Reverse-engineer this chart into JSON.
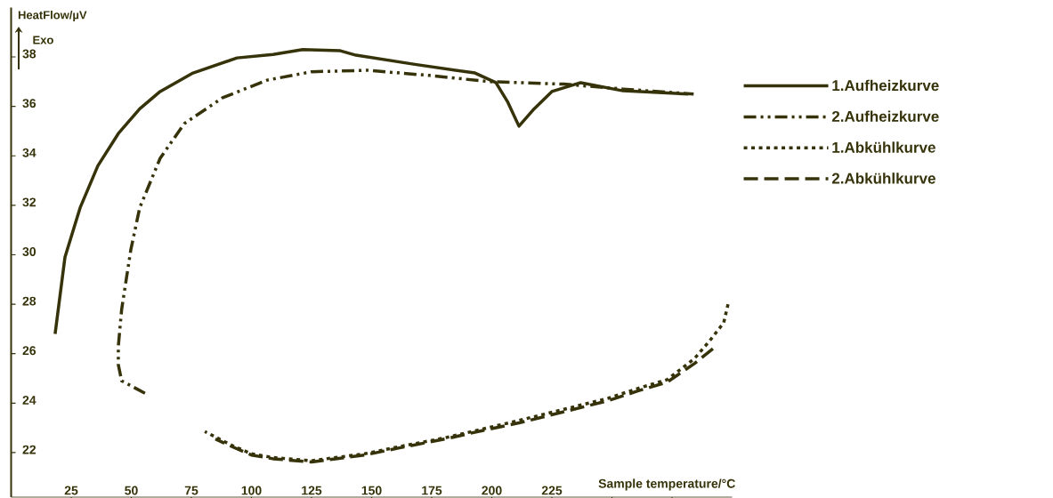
{
  "chart_data": {
    "type": "line",
    "xlabel": "Sample temperature/°C",
    "ylabel": "HeatFlow/µV",
    "annotations": [
      "Exo"
    ],
    "xlim": [
      0,
      300
    ],
    "ylim": [
      20.2,
      40
    ],
    "xticks": [
      25,
      50,
      75,
      100,
      125,
      150,
      175,
      200,
      225,
      {
        "value": 250,
        "label": null
      },
      {
        "value": 275,
        "label": null
      }
    ],
    "yticks": [
      22,
      24,
      26,
      28,
      30,
      32,
      34,
      36,
      38
    ],
    "grid": false,
    "legend": "right",
    "marker": "none",
    "series": [
      {
        "name": "1.Aufheizkurve",
        "color": "#36330a",
        "line_style": "solid",
        "x": [
          18.3,
          22.4,
          28.7,
          36.1,
          44.6,
          53.5,
          62,
          75.7,
          94,
          109,
          121.3,
          137,
          143.5,
          168,
          193,
          201.7,
          206.5,
          211.3,
          217.6,
          225,
          237,
          254.6,
          281.7
        ],
        "values": [
          26.8,
          29.9,
          31.9,
          33.6,
          34.9,
          35.9,
          36.6,
          37.35,
          37.96,
          38.1,
          38.3,
          38.25,
          38.07,
          37.7,
          37.35,
          36.96,
          36.2,
          35.2,
          35.9,
          36.6,
          36.96,
          36.63,
          36.5
        ]
      },
      {
        "name": "2.Aufheizkurve",
        "color": "#36330a",
        "line_style": "dashdotdotted",
        "x": [
          55.7,
          46,
          44.6,
          44.6,
          46,
          49.8,
          53.5,
          62,
          72,
          88,
          106.5,
          125,
          148.3,
          174,
          199,
          230,
          254.6,
          284
        ],
        "values": [
          24.4,
          24.9,
          25.55,
          26.3,
          27.8,
          30.2,
          31.9,
          33.9,
          35.3,
          36.35,
          37.06,
          37.4,
          37.46,
          37.25,
          37.0,
          36.9,
          36.7,
          36.5
        ]
      },
      {
        "name": "1.Abkühlkurve",
        "color": "#36330a",
        "line_style": "dotted",
        "x": [
          298.3,
          296.5,
          290.5,
          284.3,
          273,
          261,
          248.5,
          230,
          211.3,
          196.5,
          180.6,
          162,
          147,
          135,
          125,
          109,
          100,
          91.7,
          80.6
        ],
        "values": [
          28.0,
          27.25,
          26.5,
          25.8,
          24.95,
          24.6,
          24.2,
          23.75,
          23.3,
          22.96,
          22.6,
          22.25,
          21.95,
          21.8,
          21.67,
          21.8,
          21.95,
          22.3,
          22.85
        ]
      },
      {
        "name": "2.Abkühlkurve",
        "color": "#36330a",
        "line_style": "dashed",
        "x": [
          292,
          284.3,
          273,
          261,
          248.5,
          230,
          211.3,
          196.5,
          180.6,
          162,
          147,
          135,
          125,
          109,
          100,
          91.7,
          85
        ],
        "values": [
          26.2,
          25.6,
          24.85,
          24.5,
          24.1,
          23.65,
          23.2,
          22.9,
          22.55,
          22.2,
          21.9,
          21.75,
          21.62,
          21.75,
          21.9,
          22.25,
          22.55
        ]
      }
    ]
  }
}
